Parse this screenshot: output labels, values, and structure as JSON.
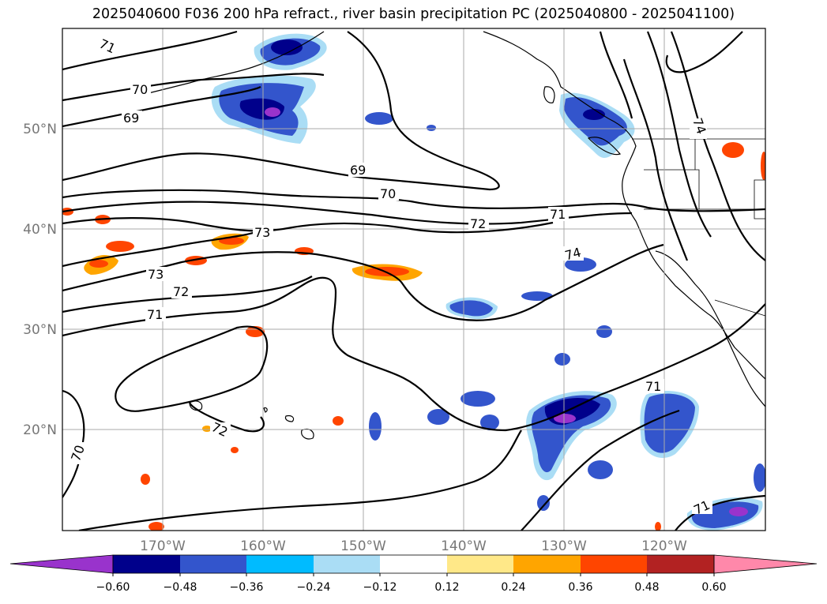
{
  "title": "2025040600 F036 200 hPa refract., river basin precipitation PC (2025040800 - 2025041100)",
  "map": {
    "lon_labels": [
      "170°W",
      "160°W",
      "150°W",
      "140°W",
      "130°W",
      "120°W"
    ],
    "lat_labels": [
      "50°N",
      "40°N",
      "30°N",
      "20°N"
    ],
    "contour_labels": [
      "71",
      "70",
      "69",
      "69",
      "70",
      "71",
      "72",
      "73",
      "73",
      "72",
      "71",
      "74",
      "74",
      "72",
      "71",
      "70",
      "71"
    ]
  },
  "colorbar": {
    "tick_labels": [
      "−0.60",
      "−0.48",
      "−0.36",
      "−0.24",
      "−0.12",
      "0.12",
      "0.24",
      "0.36",
      "0.48",
      "0.60"
    ],
    "colors": [
      "#9933cc",
      "#00008b",
      "#3355cc",
      "#00bbff",
      "#aaddf5",
      "#ffffff",
      "#ffe888",
      "#ffa500",
      "#ff4500",
      "#b22222",
      "#ff88aa"
    ]
  }
}
